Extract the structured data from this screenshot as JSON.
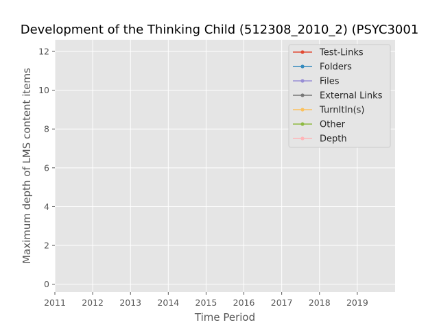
{
  "chart_data": {
    "type": "line",
    "title": "Development of the Thinking Child (512308_2010_2) (PSYC3001",
    "xlabel": "Time Period",
    "ylabel": "Maximum depth of LMS content items",
    "xlim": [
      2011,
      2020
    ],
    "ylim": [
      -0.4,
      12.6
    ],
    "x_ticks": [
      "2011",
      "2012",
      "2013",
      "2014",
      "2015",
      "2016",
      "2017",
      "2018",
      "2019"
    ],
    "y_ticks": [
      "0",
      "2",
      "4",
      "6",
      "8",
      "10",
      "12"
    ],
    "grid": true,
    "legend_position": "top-right",
    "series": [
      {
        "name": "Test-Links",
        "color": "#E24A33",
        "values": []
      },
      {
        "name": "Folders",
        "color": "#348ABD",
        "values": []
      },
      {
        "name": "Files",
        "color": "#988ED5",
        "values": []
      },
      {
        "name": "External Links",
        "color": "#777777",
        "values": []
      },
      {
        "name": "TurnItIn(s)",
        "color": "#FBC15E",
        "values": []
      },
      {
        "name": "Other",
        "color": "#8EBA42",
        "values": []
      },
      {
        "name": "Depth",
        "color": "#FFB5B8",
        "values": []
      }
    ]
  }
}
